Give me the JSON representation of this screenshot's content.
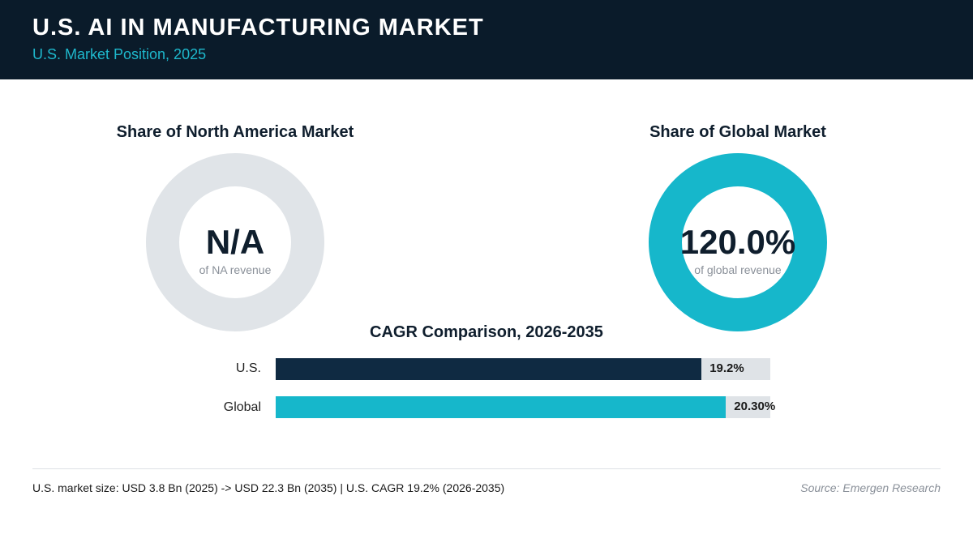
{
  "header": {
    "title": "U.S. AI IN MANUFACTURING MARKET",
    "subtitle": "U.S. Market Position, 2025"
  },
  "colors": {
    "header_bg": "#0a1b2a",
    "accent_teal": "#16b7cb",
    "navy": "#0f2a42",
    "track_gray": "#dfe3e7"
  },
  "chart_data": [
    {
      "type": "pie",
      "title": "Share of North America Market",
      "center_label": "N/A",
      "center_caption": "of NA revenue",
      "value": null,
      "ring_color": "#e0e4e8"
    },
    {
      "type": "pie",
      "title": "Share of Global Market",
      "center_label": "120.0%",
      "center_caption": "of global revenue",
      "value": 120.0,
      "ring_color": "#16b7cb"
    },
    {
      "type": "bar",
      "orientation": "horizontal",
      "title": "CAGR Comparison, 2026-2035",
      "categories": [
        "U.S.",
        "Global"
      ],
      "values": [
        19.2,
        20.3
      ],
      "value_labels": [
        "19.2%",
        "20.30%"
      ],
      "colors": [
        "#0f2a42",
        "#16b7cb"
      ],
      "xlim": [
        0,
        22.3
      ]
    }
  ],
  "footer": {
    "summary": "U.S. market size: USD 3.8 Bn (2025) -> USD 22.3 Bn (2035)  |  U.S. CAGR 19.2% (2026-2035)",
    "source": "Source: Emergen Research"
  }
}
